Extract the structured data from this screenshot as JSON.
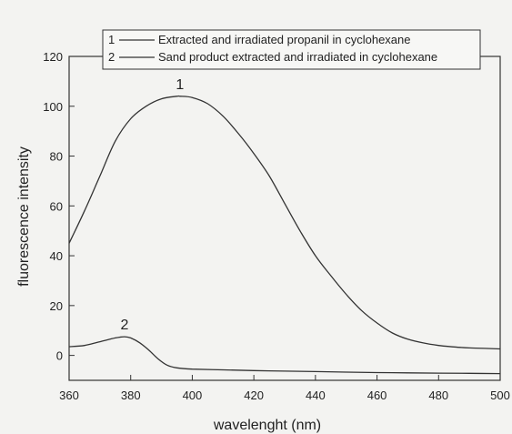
{
  "chart_data": {
    "type": "line",
    "title": "",
    "xlabel": "wavelenght (nm)",
    "ylabel": "fluorescence intensity",
    "xlim": [
      360,
      500
    ],
    "ylim": [
      -10,
      120
    ],
    "xticks": [
      360,
      380,
      400,
      420,
      440,
      460,
      480,
      500
    ],
    "yticks": [
      0,
      20,
      40,
      60,
      80,
      100,
      120
    ],
    "grid": false,
    "legend_position": "top",
    "series": [
      {
        "id": "1",
        "name": "Extracted and irradiated propanil in cyclohexane",
        "peak_label": "1",
        "peak_label_at": [
          396,
          104
        ],
        "color": "#333333",
        "x": [
          360,
          365,
          370,
          375,
          380,
          385,
          390,
          395,
          396,
          400,
          405,
          410,
          415,
          420,
          425,
          430,
          435,
          440,
          445,
          450,
          455,
          460,
          465,
          470,
          475,
          480,
          485,
          490,
          495,
          500
        ],
        "y": [
          45,
          58,
          72,
          86,
          95,
          100,
          103,
          104,
          104,
          103.5,
          101,
          96,
          89,
          81,
          72,
          61,
          50,
          40,
          32,
          24.5,
          18,
          13,
          9,
          6.5,
          5,
          4,
          3.4,
          3,
          2.8,
          2.6
        ]
      },
      {
        "id": "2",
        "name": "Sand product extracted and irradiated in cyclohexane",
        "peak_label": "2",
        "peak_label_at": [
          378,
          7.5
        ],
        "color": "#333333",
        "x": [
          360,
          365,
          370,
          375,
          378,
          380,
          383,
          386,
          389,
          392,
          395,
          400,
          410,
          420,
          430,
          440,
          450,
          460,
          470,
          480,
          490,
          500
        ],
        "y": [
          3.5,
          4,
          5.5,
          7,
          7.5,
          7,
          5,
          2,
          -1.5,
          -4,
          -5,
          -5.5,
          -5.8,
          -6.1,
          -6.3,
          -6.5,
          -6.7,
          -6.9,
          -7,
          -7.1,
          -7.2,
          -7.3
        ]
      }
    ]
  }
}
